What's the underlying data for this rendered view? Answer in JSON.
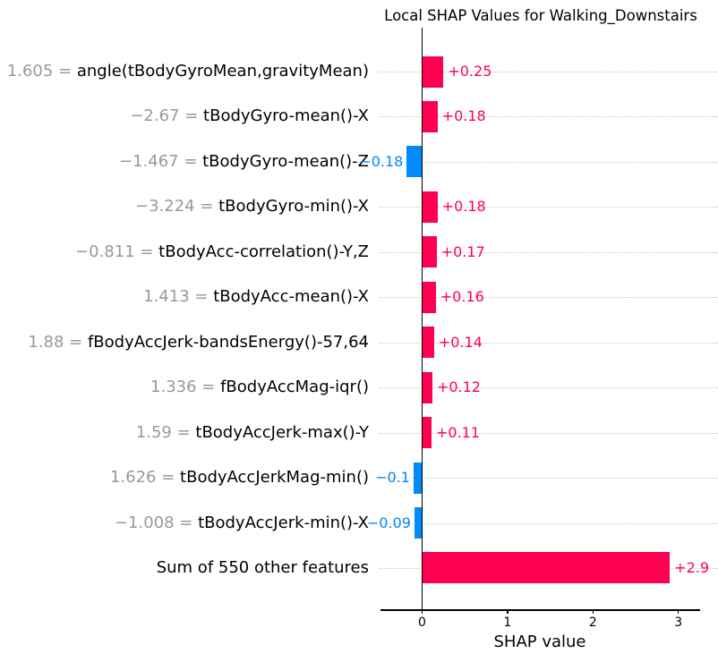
{
  "chart_data": {
    "type": "bar",
    "orientation": "horizontal",
    "title": "Local SHAP Values for Walking_Downstairs",
    "xlabel": "SHAP value",
    "ylabel": "",
    "xticks": [
      0,
      1,
      2,
      3
    ],
    "xlim": [
      -0.49,
      3.46
    ],
    "grid": "dotted horizontal per row",
    "legend": "none",
    "colors": {
      "positive_bar": "#ff0051",
      "negative_bar": "#008afa",
      "feature_value_text": "#999999",
      "feature_name_text": "#000000",
      "gridline": "#c9c9c9",
      "axis": "#000000"
    },
    "rows": [
      {
        "value_prefix": "1.605 = ",
        "feature": "angle(tBodyGyroMean,gravityMean)",
        "shap": 0.25,
        "bar_label": "+0.25"
      },
      {
        "value_prefix": "−2.67 = ",
        "feature": "tBodyGyro-mean()-X",
        "shap": 0.18,
        "bar_label": "+0.18"
      },
      {
        "value_prefix": "−1.467 = ",
        "feature": "tBodyGyro-mean()-Z",
        "shap": -0.18,
        "bar_label": "−0.18"
      },
      {
        "value_prefix": "−3.224 = ",
        "feature": "tBodyGyro-min()-X",
        "shap": 0.18,
        "bar_label": "+0.18"
      },
      {
        "value_prefix": "−0.811 = ",
        "feature": "tBodyAcc-correlation()-Y,Z",
        "shap": 0.17,
        "bar_label": "+0.17"
      },
      {
        "value_prefix": "1.413 = ",
        "feature": "tBodyAcc-mean()-X",
        "shap": 0.16,
        "bar_label": "+0.16"
      },
      {
        "value_prefix": "1.88 = ",
        "feature": "fBodyAccJerk-bandsEnergy()-57,64",
        "shap": 0.14,
        "bar_label": "+0.14"
      },
      {
        "value_prefix": "1.336 = ",
        "feature": "fBodyAccMag-iqr()",
        "shap": 0.12,
        "bar_label": "+0.12"
      },
      {
        "value_prefix": "1.59 = ",
        "feature": "tBodyAccJerk-max()-Y",
        "shap": 0.11,
        "bar_label": "+0.11"
      },
      {
        "value_prefix": "1.626 = ",
        "feature": "tBodyAccJerkMag-min()",
        "shap": -0.1,
        "bar_label": "−0.1"
      },
      {
        "value_prefix": "−1.008 = ",
        "feature": "tBodyAccJerk-min()-X",
        "shap": -0.09,
        "bar_label": "−0.09"
      },
      {
        "value_prefix": "",
        "feature": "Sum of 550 other features",
        "shap": 2.9,
        "bar_label": "+2.9"
      }
    ]
  }
}
